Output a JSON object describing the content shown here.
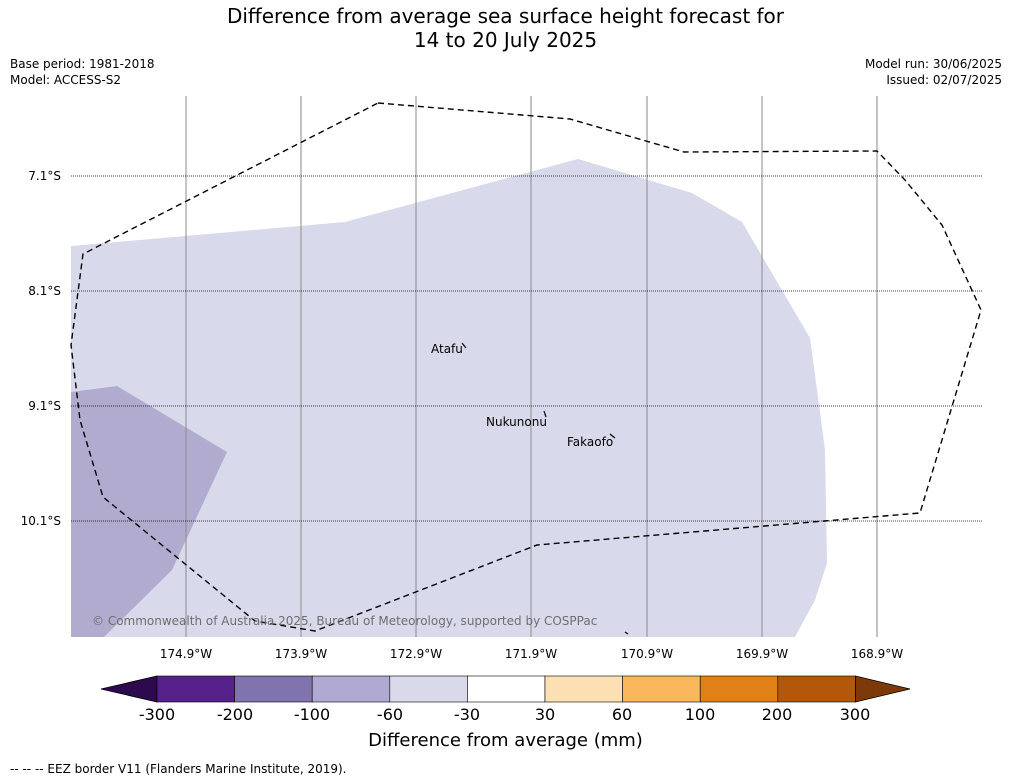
{
  "title_line1": "Difference from average sea surface height forecast for",
  "title_line2": "14 to 20 July 2025",
  "base_period": "Base period: 1981-2018",
  "model": "Model: ACCESS-S2",
  "model_run": "Model run: 30/06/2025",
  "issued": "Issued: 02/07/2025",
  "lat_labels": [
    "7.1°S",
    "8.1°S",
    "9.1°S",
    "10.1°S"
  ],
  "lon_labels": [
    "174.9°W",
    "173.9°W",
    "172.9°W",
    "171.9°W",
    "170.9°W",
    "169.9°W",
    "168.9°W"
  ],
  "places": {
    "atafu": "Atafu",
    "nukunonu": "Nukunonu",
    "fakaofo": "Fakaofo"
  },
  "copyright": "© Commonwealth of Australia 2025, Bureau of Meteorology, supported by COSPPac",
  "colorbar": {
    "ticks": [
      "-300",
      "-200",
      "-100",
      "-60",
      "-30",
      "30",
      "60",
      "100",
      "200",
      "300"
    ],
    "colors": [
      "#2d0a4e",
      "#56218a",
      "#8173ae",
      "#b0aad3",
      "#d8d9ea",
      "#ffffff",
      "#fddfb4",
      "#fbb75e",
      "#e08118",
      "#b3580b",
      "#7d3a08"
    ],
    "title": "Difference from average (mm)"
  },
  "footnote": "--  --  -- EEZ border V11 (Flanders Marine Institute, 2019).",
  "map_fill_classes": {
    "main_area": "-60 to -30",
    "southwest_area": "-100 to -60"
  }
}
